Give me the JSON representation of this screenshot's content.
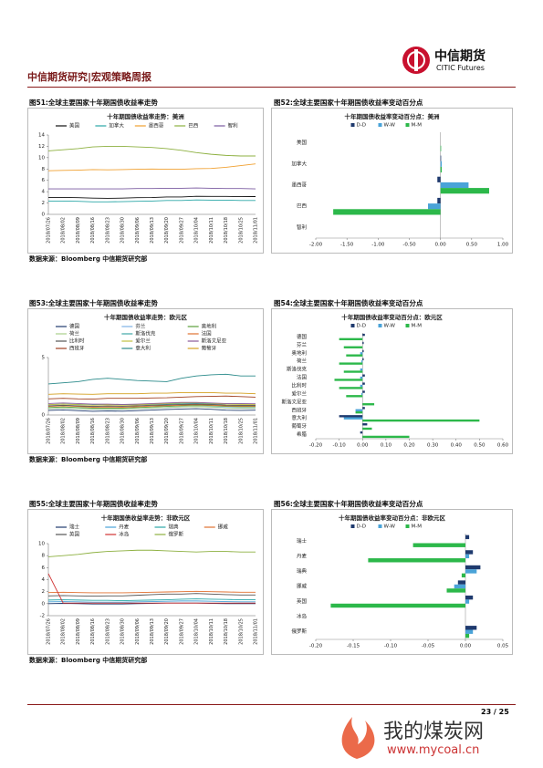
{
  "header": {
    "title": "中信期货研究|宏观策略周报",
    "logo_cn": "中信期货",
    "logo_en": "CITIC Futures"
  },
  "figures": [
    {
      "caption": "图51:全球主要国家十年期国债收益率走势"
    },
    {
      "caption": "图52:全球主要国家十年期国债收益率变动百分点"
    },
    {
      "caption": "图53:全球主要国家十年期国债收益率走势"
    },
    {
      "caption": "图54:全球主要国家十年期国债收益率变动百分点"
    },
    {
      "caption": "图55:全球主要国家十年期国债收益率走势"
    },
    {
      "caption": "图56:全球主要国家十年期国债收益率变动百分点"
    }
  ],
  "sources": [
    "数据来源：Bloomberg  中信期货研究部",
    "数据来源：Bloomberg  中信期货研究部",
    "数据来源：Bloomberg  中信期货研究部"
  ],
  "footer": {
    "page": "23 / 25"
  },
  "watermark": {
    "name": "我的煤炭网",
    "url": "www.mycoal.cn"
  },
  "chart_data": [
    {
      "type": "line",
      "title": "十年期国债收益率走势：美洲",
      "categories": [
        "2018/07/26",
        "2018/08/02",
        "2018/08/09",
        "2018/08/16",
        "2018/08/23",
        "2018/08/30",
        "2018/09/06",
        "2018/09/13",
        "2018/09/20",
        "2018/09/27",
        "2018/10/04",
        "2018/10/11",
        "2018/10/18",
        "2018/10/25",
        "2018/11/01"
      ],
      "ylim": [
        0,
        14
      ],
      "yticks": [
        0,
        2,
        4,
        6,
        8,
        10,
        12,
        14
      ],
      "series": [
        {
          "name": "美国",
          "color": "#111111",
          "values": [
            2.97,
            2.98,
            2.95,
            2.87,
            2.82,
            2.86,
            2.94,
            2.97,
            3.06,
            3.06,
            3.19,
            3.16,
            3.17,
            3.13,
            3.14
          ]
        },
        {
          "name": "加拿大",
          "color": "#2aa7a7",
          "values": [
            2.35,
            2.35,
            2.3,
            2.2,
            2.2,
            2.25,
            2.3,
            2.35,
            2.45,
            2.45,
            2.55,
            2.5,
            2.5,
            2.45,
            2.45
          ]
        },
        {
          "name": "墨西哥",
          "color": "#f0a030",
          "values": [
            7.7,
            7.75,
            7.8,
            7.9,
            7.85,
            7.9,
            7.95,
            8.0,
            7.95,
            7.95,
            8.05,
            8.1,
            8.3,
            8.6,
            8.9
          ]
        },
        {
          "name": "巴西",
          "color": "#8db040",
          "values": [
            11.2,
            11.4,
            11.6,
            11.9,
            12.0,
            12.0,
            11.9,
            11.8,
            11.6,
            11.3,
            10.9,
            10.6,
            10.4,
            10.3,
            10.3
          ]
        },
        {
          "name": "智利",
          "color": "#7a5aa0",
          "values": [
            4.5,
            4.5,
            4.5,
            4.5,
            4.5,
            4.5,
            4.55,
            4.55,
            4.6,
            4.6,
            4.65,
            4.6,
            4.55,
            4.55,
            4.5
          ]
        }
      ]
    },
    {
      "type": "hbar",
      "title": "十年期国债收益率变动百分点：美洲",
      "categories": [
        "美国",
        "加拿大",
        "墨西哥",
        "巴西",
        "智利"
      ],
      "xlim": [
        -2,
        1
      ],
      "xticks": [
        {
          "value": -2,
          "label": "-2.00"
        },
        {
          "value": -1.5,
          "label": "-1.50"
        },
        {
          "value": -1,
          "label": "-1.00"
        },
        {
          "value": -0.5,
          "label": "-0.50"
        },
        {
          "value": 0,
          "label": "0.00"
        },
        {
          "value": 0.5,
          "label": "0.50"
        },
        {
          "value": 1,
          "label": "1.00"
        }
      ],
      "series": [
        {
          "name": "D-D",
          "color": "#1f3a6e",
          "values": [
            0.0,
            0.01,
            -0.05,
            -0.05,
            0.0
          ]
        },
        {
          "name": "W-W",
          "color": "#4aa3d8",
          "values": [
            0.0,
            0.02,
            0.45,
            -0.2,
            0.0
          ]
        },
        {
          "name": "M-M",
          "color": "#2cb84a",
          "values": [
            0.01,
            0.02,
            0.78,
            -1.72,
            0.0
          ]
        }
      ]
    },
    {
      "type": "line",
      "title": "十年期国债收益率走势：欧元区",
      "categories": [
        "2018/07/26",
        "2018/08/02",
        "2018/08/09",
        "2018/08/16",
        "2018/08/23",
        "2018/08/30",
        "2018/09/06",
        "2018/09/13",
        "2018/09/20",
        "2018/09/27",
        "2018/10/04",
        "2018/10/11",
        "2018/10/18",
        "2018/10/25",
        "2018/11/01"
      ],
      "ylim": [
        0,
        5
      ],
      "yticks": [
        0,
        5
      ],
      "series": [
        {
          "name": "德国",
          "color": "#1f3a6e",
          "values": [
            0.4,
            0.44,
            0.38,
            0.32,
            0.35,
            0.33,
            0.38,
            0.43,
            0.48,
            0.52,
            0.55,
            0.5,
            0.42,
            0.4,
            0.42
          ]
        },
        {
          "name": "芬兰",
          "color": "#7fb2e5",
          "values": [
            0.55,
            0.6,
            0.55,
            0.5,
            0.5,
            0.5,
            0.55,
            0.6,
            0.65,
            0.7,
            0.72,
            0.7,
            0.65,
            0.62,
            0.62
          ]
        },
        {
          "name": "奥地利",
          "color": "#5a9e3a",
          "values": [
            0.65,
            0.7,
            0.65,
            0.6,
            0.6,
            0.6,
            0.65,
            0.7,
            0.75,
            0.8,
            0.82,
            0.8,
            0.75,
            0.72,
            0.72
          ]
        },
        {
          "name": "荷兰",
          "color": "#aad08a",
          "values": [
            0.55,
            0.6,
            0.55,
            0.5,
            0.5,
            0.5,
            0.55,
            0.6,
            0.65,
            0.7,
            0.72,
            0.68,
            0.6,
            0.58,
            0.58
          ]
        },
        {
          "name": "斯洛伐克",
          "color": "#3fa7a7",
          "values": [
            0.9,
            0.95,
            0.92,
            0.88,
            0.88,
            0.88,
            0.9,
            0.92,
            0.95,
            1.0,
            1.0,
            0.98,
            0.95,
            0.95,
            0.95
          ]
        },
        {
          "name": "法国",
          "color": "#e07030",
          "values": [
            0.75,
            0.8,
            0.75,
            0.68,
            0.7,
            0.68,
            0.72,
            0.78,
            0.82,
            0.86,
            0.9,
            0.86,
            0.8,
            0.78,
            0.78
          ]
        },
        {
          "name": "比利时",
          "color": "#555555",
          "values": [
            0.8,
            0.85,
            0.8,
            0.75,
            0.78,
            0.76,
            0.8,
            0.85,
            0.88,
            0.92,
            0.95,
            0.92,
            0.86,
            0.84,
            0.84
          ]
        },
        {
          "name": "爱尔兰",
          "color": "#c0c040",
          "values": [
            0.9,
            0.95,
            0.9,
            0.85,
            0.88,
            0.85,
            0.88,
            0.95,
            1.0,
            1.05,
            1.08,
            1.02,
            0.95,
            0.92,
            0.92
          ]
        },
        {
          "name": "斯洛文尼亚",
          "color": "#8a5a9a",
          "values": [
            1.0,
            1.05,
            1.0,
            0.95,
            0.95,
            0.92,
            0.95,
            1.0,
            1.05,
            1.1,
            1.1,
            1.05,
            1.0,
            1.0,
            0.98
          ]
        },
        {
          "name": "西班牙",
          "color": "#a04020",
          "values": [
            1.4,
            1.45,
            1.4,
            1.38,
            1.45,
            1.45,
            1.45,
            1.48,
            1.5,
            1.55,
            1.6,
            1.62,
            1.65,
            1.6,
            1.55
          ]
        },
        {
          "name": "意大利",
          "color": "#2a8a8a",
          "values": [
            2.7,
            2.8,
            2.9,
            3.1,
            3.2,
            3.1,
            3.0,
            2.95,
            2.9,
            3.2,
            3.4,
            3.5,
            3.55,
            3.4,
            3.4
          ]
        },
        {
          "name": "葡萄牙",
          "color": "#d4a020",
          "values": [
            1.8,
            1.85,
            1.82,
            1.8,
            1.85,
            1.85,
            1.85,
            1.9,
            1.9,
            1.95,
            1.95,
            1.95,
            1.9,
            1.9,
            1.85
          ]
        }
      ]
    },
    {
      "type": "hbar",
      "title": "十年期国债收益率变动百分点：欧元区",
      "categories": [
        "德国",
        "芬兰",
        "奥地利",
        "荷兰",
        "斯洛伐克",
        "法国",
        "比利时",
        "爱尔兰",
        "斯洛文尼亚",
        "西班牙",
        "意大利",
        "葡萄牙",
        "希腊"
      ],
      "xlim": [
        -0.2,
        0.6
      ],
      "xticks": [
        {
          "value": -0.2,
          "label": "-0.20"
        },
        {
          "value": -0.1,
          "label": "-0.10"
        },
        {
          "value": 0,
          "label": "0.00"
        },
        {
          "value": 0.1,
          "label": "0.10"
        },
        {
          "value": 0.2,
          "label": "0.20"
        },
        {
          "value": 0.3,
          "label": "0.30"
        },
        {
          "value": 0.4,
          "label": "0.40"
        },
        {
          "value": 0.5,
          "label": "0.50"
        },
        {
          "value": 0.6,
          "label": "0.60"
        }
      ],
      "series": [
        {
          "name": "D-D",
          "color": "#1f3a6e",
          "values": [
            0.01,
            0.005,
            0.005,
            0.005,
            0.0,
            0.01,
            0.01,
            0.01,
            0.0,
            0.01,
            -0.1,
            0.02,
            -0.01
          ]
        },
        {
          "name": "W-W",
          "color": "#4aa3d8",
          "values": [
            0.0,
            0.0,
            -0.01,
            -0.005,
            -0.01,
            -0.01,
            -0.01,
            -0.005,
            0.0,
            -0.03,
            -0.08,
            0.0,
            0.0
          ]
        },
        {
          "name": "M-M",
          "color": "#2cb84a",
          "values": [
            -0.1,
            -0.08,
            -0.07,
            -0.1,
            -0.08,
            -0.12,
            -0.1,
            -0.07,
            0.05,
            -0.03,
            0.5,
            0.04,
            0.2
          ]
        }
      ]
    },
    {
      "type": "line",
      "title": "十年期国债收益率走势：非欧元区",
      "categories": [
        "2018/07/26",
        "2018/08/02",
        "2018/08/09",
        "2018/08/16",
        "2018/08/23",
        "2018/08/30",
        "2018/09/06",
        "2018/09/13",
        "2018/09/20",
        "2018/09/27",
        "2018/10/04",
        "2018/10/11",
        "2018/10/18",
        "2018/10/25",
        "2018/11/01"
      ],
      "ylim": [
        -2,
        10
      ],
      "yticks": [
        -2,
        0,
        2,
        4,
        6,
        8,
        10
      ],
      "series": [
        {
          "name": "瑞士",
          "color": "#1f3a6e",
          "values": [
            0.0,
            0.05,
            0.0,
            -0.05,
            -0.05,
            -0.05,
            0.0,
            0.05,
            0.1,
            0.1,
            0.1,
            0.05,
            0.0,
            0.0,
            0.0
          ]
        },
        {
          "name": "丹麦",
          "color": "#4aa3d8",
          "values": [
            0.3,
            0.35,
            0.3,
            0.25,
            0.25,
            0.25,
            0.3,
            0.35,
            0.4,
            0.45,
            0.45,
            0.4,
            0.35,
            0.3,
            0.3
          ]
        },
        {
          "name": "瑞典",
          "color": "#2aa7a7",
          "values": [
            0.6,
            0.65,
            0.6,
            0.55,
            0.55,
            0.5,
            0.55,
            0.6,
            0.65,
            0.75,
            0.8,
            0.75,
            0.7,
            0.65,
            0.65
          ]
        },
        {
          "name": "挪威",
          "color": "#e07030",
          "values": [
            1.85,
            1.9,
            1.85,
            1.8,
            1.8,
            1.8,
            1.85,
            1.9,
            1.95,
            2.0,
            2.05,
            2.0,
            1.95,
            1.9,
            1.9
          ]
        },
        {
          "name": "英国",
          "color": "#555555",
          "values": [
            1.3,
            1.35,
            1.3,
            1.25,
            1.3,
            1.3,
            1.4,
            1.5,
            1.6,
            1.6,
            1.7,
            1.6,
            1.5,
            1.45,
            1.45
          ]
        },
        {
          "name": "冰岛",
          "color": "#d03030",
          "values": [
            5.0,
            0.1,
            0.1,
            0.1,
            0.1,
            0.1,
            0.1,
            0.1,
            0.1,
            0.1,
            0.1,
            0.1,
            0.1,
            0.1,
            0.1
          ]
        },
        {
          "name": "俄罗斯",
          "color": "#8db040",
          "values": [
            7.8,
            8.0,
            8.2,
            8.5,
            8.7,
            8.8,
            8.9,
            8.9,
            8.8,
            8.7,
            8.6,
            8.7,
            8.7,
            8.6,
            8.6
          ]
        }
      ]
    },
    {
      "type": "hbar",
      "title": "十年期国债收益率变动百分点：非欧元区",
      "categories": [
        "瑞士",
        "丹麦",
        "瑞典",
        "挪威",
        "英国",
        "冰岛",
        "俄罗斯"
      ],
      "xlim": [
        -0.2,
        0.05
      ],
      "xticks": [
        {
          "value": -0.2,
          "label": "-0.20"
        },
        {
          "value": -0.15,
          "label": "-0.15"
        },
        {
          "value": -0.1,
          "label": "-0.10"
        },
        {
          "value": -0.05,
          "label": "-0.05"
        },
        {
          "value": 0,
          "label": "0.00"
        },
        {
          "value": 0.05,
          "label": "0.05"
        }
      ],
      "series": [
        {
          "name": "D-D",
          "color": "#1f3a6e",
          "values": [
            0.005,
            0.01,
            0.02,
            -0.01,
            0.01,
            0.0,
            0.015
          ]
        },
        {
          "name": "W-W",
          "color": "#4aa3d8",
          "values": [
            0.0,
            0.005,
            0.015,
            -0.015,
            0.005,
            0.0,
            0.01
          ]
        },
        {
          "name": "M-M",
          "color": "#2cb84a",
          "values": [
            -0.07,
            -0.13,
            -0.005,
            -0.025,
            -0.18,
            0.0,
            0.005
          ]
        }
      ]
    }
  ]
}
